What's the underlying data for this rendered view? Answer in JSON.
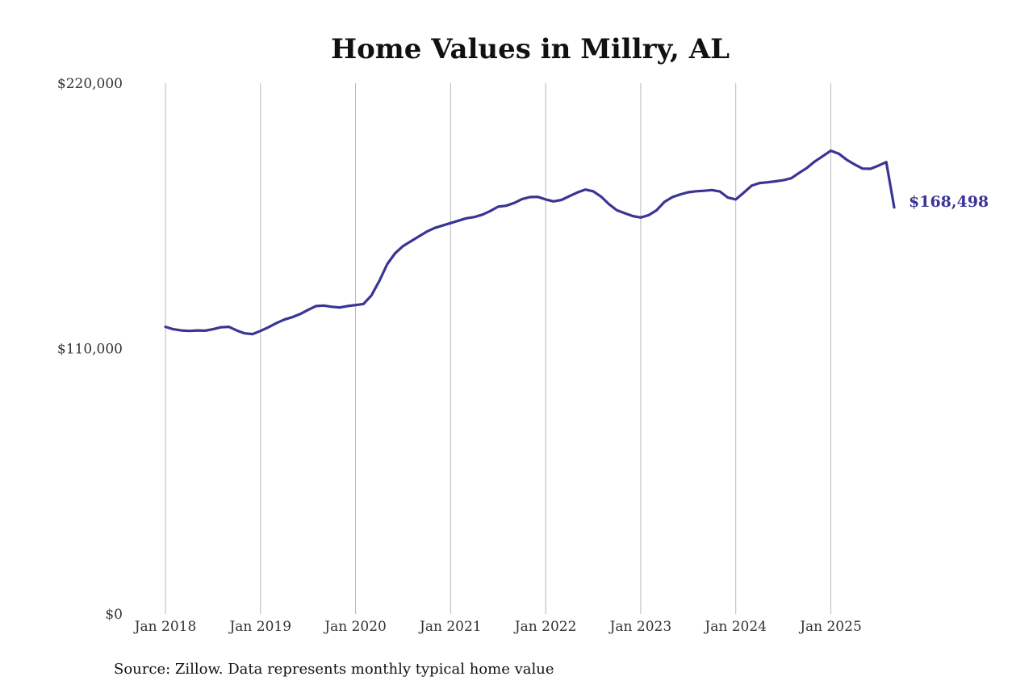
{
  "chart_data": {
    "type": "line",
    "title": "Home Values in Millry, AL",
    "xlabel": "",
    "ylabel": "",
    "y_ticks": [
      "$220,000",
      "$110,000",
      "$0"
    ],
    "y_tick_values": [
      220000,
      110000,
      0
    ],
    "ylim": [
      0,
      220000
    ],
    "x_ticks": [
      "Jan 2018",
      "Jan 2019",
      "Jan 2020",
      "Jan 2021",
      "Jan 2022",
      "Jan 2023",
      "Jan 2024",
      "Jan 2025"
    ],
    "x_tick_values": [
      "2018-01",
      "2019-01",
      "2020-01",
      "2021-01",
      "2022-01",
      "2023-01",
      "2024-01",
      "2025-01"
    ],
    "xlim": [
      "2018-01",
      "2025-09"
    ],
    "grid": "vertical lines at January of each year",
    "color": "#3a3594",
    "end_label": "$168,498",
    "source": "Source: Zillow. Data represents monthly typical home value",
    "series": [
      {
        "x": [
          "2018-01",
          "2018-02",
          "2018-03",
          "2018-04",
          "2018-05",
          "2018-06",
          "2018-07",
          "2018-08",
          "2018-09",
          "2018-10",
          "2018-11",
          "2018-12",
          "2019-01",
          "2019-02",
          "2019-03",
          "2019-04",
          "2019-05",
          "2019-06",
          "2019-07",
          "2019-08",
          "2019-09",
          "2019-10",
          "2019-11",
          "2019-12",
          "2020-01",
          "2020-02",
          "2020-03",
          "2020-04",
          "2020-05",
          "2020-06",
          "2020-07",
          "2020-08",
          "2020-09",
          "2020-10",
          "2020-11",
          "2020-12",
          "2021-01",
          "2021-02",
          "2021-03",
          "2021-04",
          "2021-05",
          "2021-06",
          "2021-07",
          "2021-08",
          "2021-09",
          "2021-10",
          "2021-11",
          "2021-12",
          "2022-01",
          "2022-02",
          "2022-03",
          "2022-04",
          "2022-05",
          "2022-06",
          "2022-07",
          "2022-08",
          "2022-09",
          "2022-10",
          "2022-11",
          "2022-12",
          "2023-01",
          "2023-02",
          "2023-03",
          "2023-04",
          "2023-05",
          "2023-06",
          "2023-07",
          "2023-08",
          "2023-09",
          "2023-10",
          "2023-11",
          "2023-12",
          "2024-01",
          "2024-02",
          "2024-03",
          "2024-04",
          "2024-05",
          "2024-06",
          "2024-07",
          "2024-08",
          "2024-09",
          "2024-10",
          "2024-11",
          "2024-12",
          "2025-01",
          "2025-02",
          "2025-03",
          "2025-04",
          "2025-05",
          "2025-06",
          "2025-07",
          "2025-08",
          "2025-09"
        ],
        "y": [
          119000,
          118000,
          117500,
          117300,
          117500,
          117400,
          118000,
          118800,
          119000,
          117500,
          116300,
          116000,
          117300,
          118800,
          120500,
          122000,
          123000,
          124300,
          126000,
          127600,
          127800,
          127300,
          127000,
          127600,
          128000,
          128500,
          132000,
          138000,
          145000,
          149500,
          152500,
          154500,
          156500,
          158500,
          160000,
          161000,
          162000,
          163000,
          164000,
          164500,
          165500,
          167000,
          168800,
          169200,
          170300,
          171900,
          172800,
          172900,
          171800,
          171000,
          171600,
          173200,
          174700,
          175900,
          175200,
          173000,
          169800,
          167300,
          166100,
          164900,
          164300,
          165300,
          167300,
          170800,
          172800,
          173900,
          174800,
          175200,
          175400,
          175700,
          175100,
          172600,
          171800,
          174600,
          177500,
          178600,
          178900,
          179300,
          179800,
          180600,
          182800,
          184900,
          187600,
          189800,
          192000,
          190800,
          188300,
          186300,
          184600,
          184500,
          185800,
          187300,
          168498
        ]
      }
    ]
  }
}
